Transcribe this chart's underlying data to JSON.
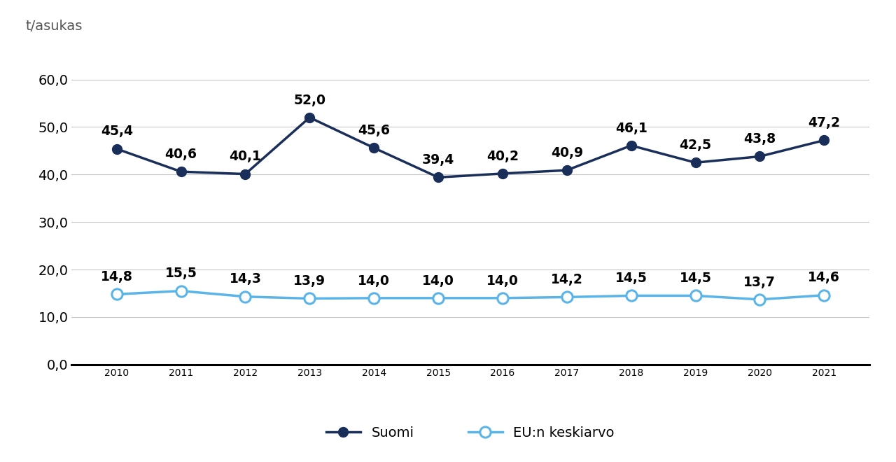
{
  "years": [
    2010,
    2011,
    2012,
    2013,
    2014,
    2015,
    2016,
    2017,
    2018,
    2019,
    2020,
    2021
  ],
  "finland": [
    45.4,
    40.6,
    40.1,
    52.0,
    45.6,
    39.4,
    40.2,
    40.9,
    46.1,
    42.5,
    43.8,
    47.2
  ],
  "eu_avg": [
    14.8,
    15.5,
    14.3,
    13.9,
    14.0,
    14.0,
    14.0,
    14.2,
    14.5,
    14.5,
    13.7,
    14.6
  ],
  "finland_color": "#1a2e5a",
  "eu_color": "#5ab4e8",
  "ylabel": "t/asukas",
  "yticks": [
    0.0,
    10.0,
    20.0,
    30.0,
    40.0,
    50.0,
    60.0
  ],
  "ylim": [
    -3,
    67
  ],
  "legend_finland": "Suomi",
  "legend_eu": "EU:n keskiarvo",
  "background_color": "#ffffff",
  "grid_color": "#c8c8c8",
  "tick_fontsize": 14,
  "annot_fontsize": 13.5,
  "ylabel_fontsize": 14
}
